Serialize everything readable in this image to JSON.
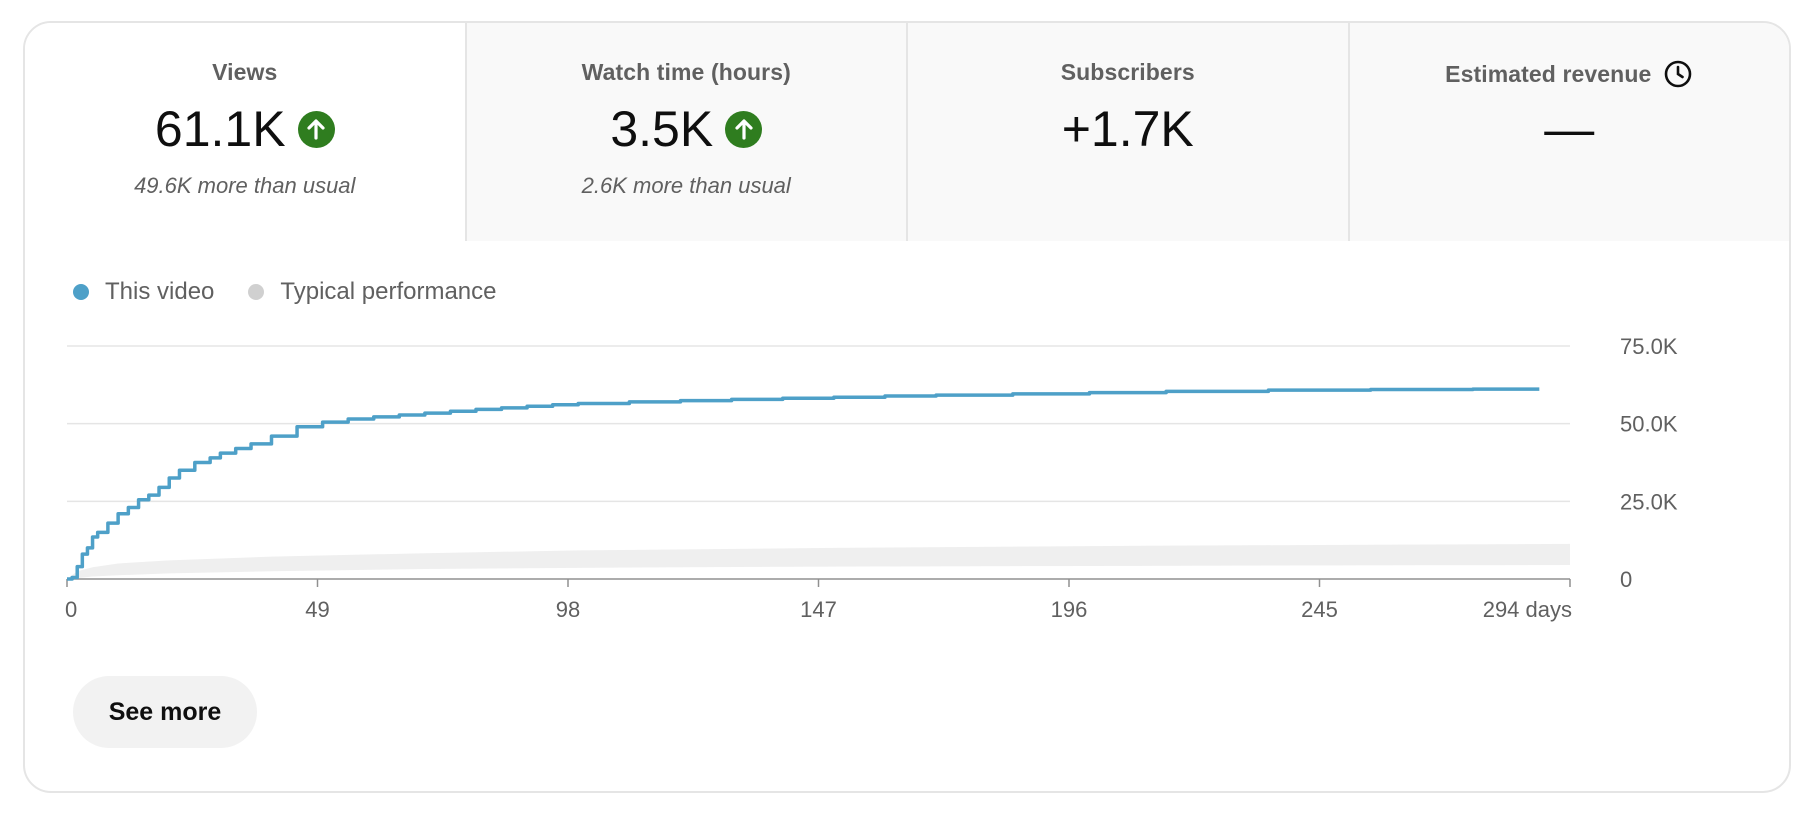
{
  "tabs": [
    {
      "label": "Views",
      "value": "61.1K",
      "sub": "49.6K more than usual",
      "icon": "arrow-up-circle-icon"
    },
    {
      "label": "Watch time (hours)",
      "value": "3.5K",
      "sub": "2.6K more than usual",
      "icon": "arrow-up-circle-icon"
    },
    {
      "label": "Subscribers",
      "value": "+1.7K",
      "sub": ""
    },
    {
      "label": "Estimated revenue",
      "value": "—",
      "sub": "",
      "icon": "clock-icon"
    }
  ],
  "legend": {
    "this_video": "This video",
    "typical": "Typical performance"
  },
  "see_more": "See more",
  "colors": {
    "series": "#4ea0c8",
    "band": "#efefef",
    "positive": "#2f7d1f",
    "grid": "#e5e5e5"
  },
  "chart_data": {
    "type": "line",
    "x_ticks": [
      "0",
      "49",
      "98",
      "147",
      "196",
      "245",
      "294 days"
    ],
    "x_tick_values": [
      0,
      49,
      98,
      147,
      196,
      245,
      294
    ],
    "y_ticks": [
      "0",
      "25.0K",
      "50.0K",
      "75.0K"
    ],
    "y_tick_values": [
      0,
      25000,
      50000,
      75000
    ],
    "xlim": [
      0,
      294
    ],
    "ylim": [
      0,
      75000
    ],
    "grid": true,
    "series": [
      {
        "name": "This video",
        "x": [
          0,
          1,
          2,
          3,
          4,
          5,
          6,
          8,
          10,
          12,
          14,
          16,
          18,
          20,
          22,
          25,
          28,
          30,
          33,
          36,
          40,
          45,
          50,
          55,
          60,
          65,
          70,
          75,
          80,
          85,
          90,
          95,
          100,
          110,
          120,
          130,
          140,
          150,
          160,
          170,
          185,
          200,
          215,
          235,
          255,
          275,
          288
        ],
        "y": [
          0,
          500,
          4000,
          8000,
          10000,
          13500,
          15000,
          18000,
          21000,
          23000,
          25500,
          27000,
          29500,
          32500,
          35000,
          37500,
          39000,
          40500,
          42000,
          43500,
          46000,
          49000,
          50500,
          51500,
          52200,
          52800,
          53400,
          54000,
          54600,
          55100,
          55600,
          56100,
          56500,
          57000,
          57400,
          57800,
          58200,
          58500,
          58900,
          59200,
          59600,
          60000,
          60400,
          60800,
          61000,
          61100,
          61100
        ]
      },
      {
        "name": "Typical performance",
        "x": [
          0,
          2,
          5,
          10,
          20,
          40,
          70,
          100,
          150,
          200,
          250,
          294
        ],
        "y_low": [
          0,
          300,
          800,
          1200,
          1800,
          2500,
          3200,
          3600,
          4000,
          4200,
          4400,
          4500
        ],
        "y_high": [
          0,
          2500,
          3800,
          5000,
          6000,
          7200,
          8300,
          9200,
          10000,
          10600,
          11000,
          11300
        ]
      }
    ]
  }
}
